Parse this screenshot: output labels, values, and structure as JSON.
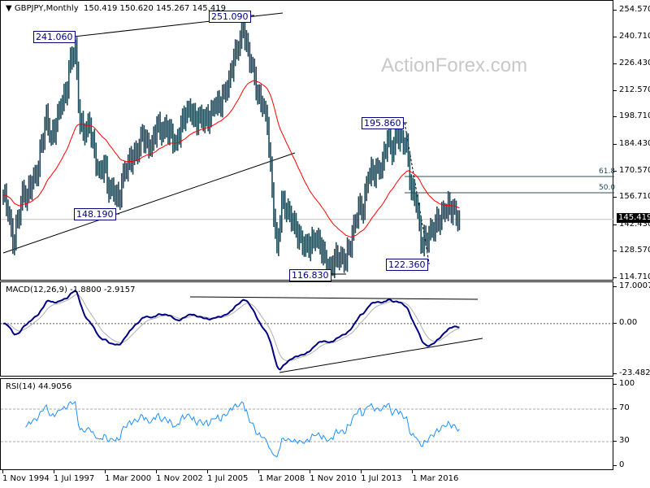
{
  "chart_data": [
    {
      "type": "ohlc-bar",
      "title": "GBPJPY,Monthly",
      "ohlc_readout": "150.419 150.620 145.267 145.419",
      "watermark": "ActionForex.com",
      "yticks": [
        "254.570",
        "240.710",
        "226.430",
        "212.570",
        "198.710",
        "184.430",
        "170.570",
        "156.710",
        "142.430",
        "128.570",
        "114.710"
      ],
      "ylim": [
        114.71,
        254.57
      ],
      "current_price": "145.419",
      "annotations": [
        "241.060",
        "251.090",
        "148.190",
        "116.830",
        "195.860",
        "122.360"
      ],
      "fib_levels": [
        "61.8",
        "50.0"
      ],
      "moving_average_color": "#ff0000",
      "bar_color": "#1e4a5a",
      "series_start": "1994-11",
      "step_months": 3,
      "closes": [
        158,
        150,
        132,
        145,
        160,
        158,
        165,
        168,
        185,
        200,
        188,
        195,
        205,
        210,
        230,
        235,
        195,
        190,
        195,
        180,
        170,
        175,
        160,
        160,
        155,
        170,
        175,
        178,
        180,
        190,
        185,
        185,
        195,
        190,
        193,
        190,
        185,
        195,
        200,
        202,
        197,
        200,
        198,
        198,
        205,
        205,
        212,
        218,
        230,
        235,
        245,
        233,
        225,
        210,
        205,
        195,
        160,
        130,
        155,
        150,
        145,
        140,
        135,
        132,
        132,
        135,
        132,
        125,
        120,
        125,
        125,
        123,
        130,
        142,
        152,
        150,
        168,
        170,
        172,
        175,
        188,
        180,
        190,
        188,
        185,
        160,
        155,
        133,
        135,
        140,
        143,
        145,
        150,
        152,
        150,
        145.419
      ]
    },
    {
      "type": "line",
      "title": "MACD(12,26,9) -1.8800 -2.9157",
      "yticks": [
        "17.0007",
        "0.00",
        "-23.4823"
      ],
      "ylim": [
        -23.4823,
        17.0007
      ],
      "main_color": "#000080",
      "signal_color": "#b0b0b0"
    },
    {
      "type": "line",
      "title": "RSI(14) 44.9056",
      "yticks": [
        "100",
        "70",
        "30",
        "0"
      ],
      "ylim": [
        0,
        100
      ],
      "color": "#1e90ff"
    }
  ],
  "xticks": [
    "1 Nov 1994",
    "1 Jul 1997",
    "1 Mar 2000",
    "1 Nov 2002",
    "1 Jul 2005",
    "1 Mar 2008",
    "1 Nov 2010",
    "1 Jul 2013",
    "1 Mar 2016"
  ]
}
